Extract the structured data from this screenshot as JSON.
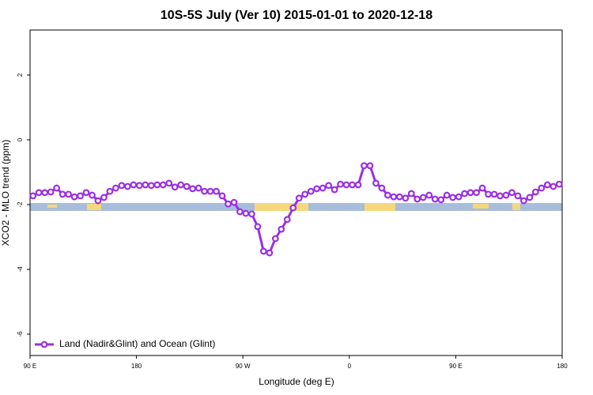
{
  "chart_data": {
    "type": "line",
    "title": "10S-5S July (Ver 10)   2015-01-01 to 2020-12-18",
    "x_label": "Longitude (deg E)",
    "y_label": "XCO2 - MLO trend (ppm)",
    "x": [
      92.5,
      97.5,
      102.5,
      107.5,
      112.5,
      117.5,
      122.5,
      127.5,
      132.5,
      137.5,
      142.5,
      147.5,
      152.5,
      157.5,
      162.5,
      167.5,
      172.5,
      177.5,
      182.5,
      187.5,
      192.5,
      197.5,
      202.5,
      207.5,
      212.5,
      217.5,
      222.5,
      227.5,
      232.5,
      237.5,
      242.5,
      247.5,
      252.5,
      257.5,
      262.5,
      267.5,
      272.5,
      277.5,
      282.5,
      287.5,
      292.5,
      297.5,
      302.5,
      307.5,
      312.5,
      317.5,
      322.5,
      327.5,
      332.5,
      337.5,
      342.5,
      347.5,
      352.5,
      357.5,
      362.5,
      367.5,
      372.5,
      377.5,
      382.5,
      387.5,
      392.5,
      397.5,
      402.5,
      407.5,
      412.5,
      417.5,
      422.5,
      427.5,
      432.5,
      437.5,
      442.5,
      447.5,
      452.5,
      457.5,
      462.5,
      467.5,
      472.5,
      477.5,
      482.5,
      487.5,
      492.5,
      497.5,
      502.5,
      507.5,
      512.5,
      517.5,
      522.5,
      527.5,
      532.5,
      537.5
    ],
    "series": [
      {
        "name": "Land (Nadir&Glint) and Ocean (Glint)",
        "color": "#9b30e0",
        "values": [
          -1.73,
          -1.63,
          -1.63,
          -1.61,
          -1.49,
          -1.68,
          -1.68,
          -1.76,
          -1.73,
          -1.63,
          -1.71,
          -1.88,
          -1.78,
          -1.59,
          -1.49,
          -1.41,
          -1.44,
          -1.39,
          -1.41,
          -1.39,
          -1.41,
          -1.39,
          -1.39,
          -1.34,
          -1.46,
          -1.39,
          -1.44,
          -1.51,
          -1.49,
          -1.59,
          -1.59,
          -1.59,
          -1.73,
          -1.98,
          -1.93,
          -2.22,
          -2.27,
          -2.29,
          -2.68,
          -3.44,
          -3.49,
          -3.05,
          -2.76,
          -2.46,
          -2.1,
          -1.8,
          -1.68,
          -1.59,
          -1.51,
          -1.49,
          -1.41,
          -1.54,
          -1.37,
          -1.39,
          -1.39,
          -1.39,
          -0.8,
          -0.8,
          -1.34,
          -1.49,
          -1.71,
          -1.76,
          -1.76,
          -1.8,
          -1.66,
          -1.83,
          -1.78,
          -1.71,
          -1.83,
          -1.85,
          -1.71,
          -1.78,
          -1.76,
          -1.66,
          -1.63,
          -1.63,
          -1.49,
          -1.68,
          -1.68,
          -1.73,
          -1.71,
          -1.63,
          -1.73,
          -1.88,
          -1.78,
          -1.61,
          -1.49,
          -1.39,
          -1.44,
          -1.37
        ]
      }
    ],
    "xlim": [
      90,
      540
    ],
    "xticks": [
      {
        "value": 90,
        "label": "90 E"
      },
      180,
      {
        "value": 270,
        "label": "90 W"
      },
      {
        "value": 360,
        "label": "0"
      },
      {
        "value": 450,
        "label": "90 E"
      },
      {
        "value": 540,
        "label": "180"
      }
    ],
    "ylim": [
      -6.66,
      3.39
    ],
    "yticks": [
      -6,
      -4,
      -2,
      0,
      2
    ],
    "legend": "bottom-left"
  }
}
